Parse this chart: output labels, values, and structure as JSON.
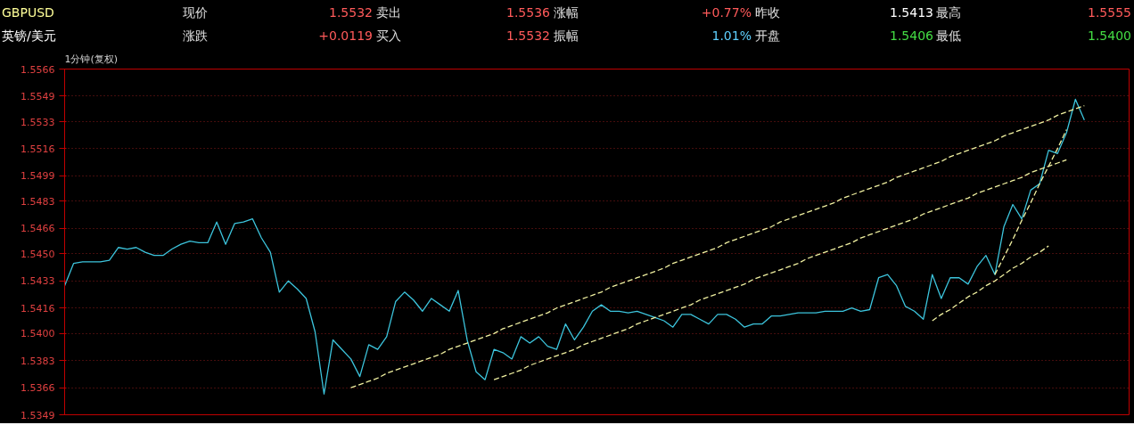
{
  "chart_data": {
    "type": "line",
    "title": "GBPUSD",
    "subtitle": "英镑/美元",
    "annotations": [
      "1分钟(复权)",
      "现价",
      "1.5532",
      "卖出",
      "1.5536",
      "涨幅",
      "+0.77%",
      "昨收",
      "1.5413",
      "最高",
      "1.5555",
      "涨跌",
      "+0.0119",
      "买入",
      "1.5532",
      "振幅",
      "1.01%",
      "开盘",
      "1.5406",
      "最低",
      "1.5400"
    ],
    "categories": [
      null,
      null,
      null,
      null,
      null,
      null,
      null,
      null,
      null,
      null,
      null,
      null,
      null,
      null,
      null,
      null,
      null,
      null,
      null,
      null,
      null,
      null,
      null,
      null,
      null,
      null,
      null,
      null,
      null,
      null,
      null,
      null,
      null,
      null,
      null,
      null,
      null,
      null,
      null,
      null,
      null,
      null,
      null,
      null,
      null,
      null,
      null,
      null,
      null,
      null,
      null,
      null,
      null,
      null,
      null,
      null,
      null,
      null,
      null,
      null,
      null,
      null,
      null,
      null,
      null,
      null,
      null,
      null,
      null,
      null,
      null,
      null,
      null,
      null,
      null,
      null,
      null,
      null,
      null,
      null,
      null,
      null,
      null,
      null,
      null,
      null,
      null,
      null,
      null,
      null,
      null,
      null,
      null,
      null,
      null,
      null,
      null,
      null,
      null,
      null,
      null,
      null,
      null,
      null,
      null,
      null,
      null,
      null,
      null,
      null,
      null,
      null,
      null,
      null,
      null,
      null,
      null,
      null,
      null,
      null
    ],
    "series": [
      {
        "color": "#3cc4dc",
        "values": [
          1.543,
          1.5444,
          1.5445,
          1.5445,
          1.5445,
          1.5446,
          1.5454,
          1.5453,
          1.5454,
          1.5451,
          1.5449,
          1.5449,
          1.5453,
          1.5456,
          1.5458,
          1.5457,
          1.5457,
          1.547,
          1.5456,
          1.5469,
          1.547,
          1.5472,
          1.546,
          1.5451,
          1.5426,
          1.5433,
          1.5428,
          1.5422,
          1.5401,
          1.5362,
          1.5396,
          1.539,
          1.5384,
          1.5373,
          1.5393,
          1.539,
          1.5398,
          1.542,
          1.5426,
          1.5421,
          1.5414,
          1.5422,
          1.5418,
          1.5414,
          1.5427,
          1.5396,
          1.5376,
          1.5371,
          1.539,
          1.5388,
          1.5384,
          1.5398,
          1.5394,
          1.5398,
          1.5392,
          1.539,
          1.5406,
          1.5396,
          1.5404,
          1.5414,
          1.5418,
          1.5414,
          1.5414,
          1.5413,
          1.5414,
          1.5412,
          1.541,
          1.5408,
          1.5404,
          1.5412,
          1.5412,
          1.5409,
          1.5406,
          1.5412,
          1.5412,
          1.5409,
          1.5404,
          1.5406,
          1.5406,
          1.5411,
          1.5411,
          1.5412,
          1.5413,
          1.5413,
          1.5413,
          1.5414,
          1.5414,
          1.5414,
          1.5416,
          1.5414,
          1.5415,
          1.5435,
          1.5437,
          1.543,
          1.5417,
          1.5414,
          1.5409,
          1.5437,
          1.5422,
          1.5435,
          1.5435,
          1.5431,
          1.5442,
          1.5449,
          1.5437,
          1.5467,
          1.5481,
          1.5472,
          1.549,
          1.5494,
          1.5515,
          1.5513,
          1.5526,
          1.5547,
          1.5534,
          null,
          null,
          null,
          null,
          null
        ]
      },
      {
        "type": "line",
        "color": "#f0f0a0",
        "line_style": "dashed",
        "values": [
          null,
          null,
          null,
          null,
          null,
          null,
          null,
          null,
          null,
          null,
          null,
          null,
          null,
          null,
          null,
          null,
          null,
          null,
          null,
          null,
          null,
          null,
          null,
          null,
          null,
          null,
          null,
          null,
          null,
          null,
          null,
          null,
          1.5366,
          1.5368,
          1.537,
          1.5372,
          1.5375,
          1.5377,
          1.5379,
          1.5381,
          1.5383,
          1.5385,
          1.5387,
          1.539,
          1.5392,
          1.5394,
          1.5396,
          1.5398,
          1.54,
          1.5403,
          1.5405,
          1.5407,
          1.5409,
          1.5411,
          1.5413,
          1.5416,
          1.5418,
          1.542,
          1.5422,
          1.5424,
          1.5426,
          1.5429,
          1.5431,
          1.5433,
          1.5435,
          1.5437,
          1.5439,
          1.5441,
          1.5444,
          1.5446,
          1.5448,
          1.545,
          1.5452,
          1.5454,
          1.5457,
          1.5459,
          1.5461,
          1.5463,
          1.5465,
          1.5467,
          1.547,
          1.5472,
          1.5474,
          1.5476,
          1.5478,
          1.548,
          1.5482,
          1.5485,
          1.5487,
          1.5489,
          1.5491,
          1.5493,
          1.5495,
          1.5498,
          1.55,
          1.5502,
          1.5504,
          1.5506,
          1.5508,
          1.5511,
          1.5513,
          1.5515,
          1.5517,
          1.5519,
          1.5521,
          1.5524,
          1.5526,
          1.5528,
          1.553,
          1.5532,
          1.5534,
          1.5537,
          1.5539,
          1.5541,
          1.5543,
          null,
          null,
          null,
          null,
          null
        ]
      },
      {
        "type": "line",
        "color": "#f0f0a0",
        "line_style": "dashed",
        "values": [
          null,
          null,
          null,
          null,
          null,
          null,
          null,
          null,
          null,
          null,
          null,
          null,
          null,
          null,
          null,
          null,
          null,
          null,
          null,
          null,
          null,
          null,
          null,
          null,
          null,
          null,
          null,
          null,
          null,
          null,
          null,
          null,
          null,
          null,
          null,
          null,
          null,
          null,
          null,
          null,
          null,
          null,
          null,
          null,
          null,
          null,
          null,
          null,
          1.5371,
          1.5373,
          1.5375,
          1.5377,
          1.538,
          1.5382,
          1.5384,
          1.5386,
          1.5388,
          1.539,
          1.5393,
          1.5395,
          1.5397,
          1.5399,
          1.5401,
          1.5403,
          1.5406,
          1.5408,
          1.541,
          1.5412,
          1.5414,
          1.5416,
          1.5418,
          1.5421,
          1.5423,
          1.5425,
          1.5427,
          1.5429,
          1.5431,
          1.5434,
          1.5436,
          1.5438,
          1.544,
          1.5442,
          1.5444,
          1.5447,
          1.5449,
          1.5451,
          1.5453,
          1.5455,
          1.5457,
          1.546,
          1.5462,
          1.5464,
          1.5466,
          1.5468,
          1.547,
          1.5472,
          1.5475,
          1.5477,
          1.5479,
          1.5481,
          1.5483,
          1.5485,
          1.5488,
          1.549,
          1.5492,
          1.5494,
          1.5496,
          1.5498,
          1.5501,
          1.5503,
          1.5505,
          1.5507,
          1.5509,
          null,
          null,
          null,
          null,
          null,
          null,
          null
        ]
      },
      {
        "type": "line",
        "color": "#f0f0a0",
        "line_style": "dashed",
        "values": [
          null,
          null,
          null,
          null,
          null,
          null,
          null,
          null,
          null,
          null,
          null,
          null,
          null,
          null,
          null,
          null,
          null,
          null,
          null,
          null,
          null,
          null,
          null,
          null,
          null,
          null,
          null,
          null,
          null,
          null,
          null,
          null,
          null,
          null,
          null,
          null,
          null,
          null,
          null,
          null,
          null,
          null,
          null,
          null,
          null,
          null,
          null,
          null,
          null,
          null,
          null,
          null,
          null,
          null,
          null,
          null,
          null,
          null,
          null,
          null,
          null,
          null,
          null,
          null,
          null,
          null,
          null,
          null,
          null,
          null,
          null,
          null,
          null,
          null,
          null,
          null,
          null,
          null,
          null,
          null,
          null,
          null,
          null,
          null,
          null,
          null,
          null,
          null,
          null,
          null,
          null,
          null,
          null,
          null,
          null,
          null,
          null,
          1.5408,
          1.5412,
          1.5415,
          1.5419,
          1.5423,
          1.5426,
          1.543,
          1.5433,
          1.5437,
          1.5441,
          1.5444,
          1.5448,
          1.5451,
          1.5455,
          null,
          null,
          null,
          null,
          null,
          null,
          null,
          null,
          null
        ]
      },
      {
        "type": "line",
        "color": "#f0f0a0",
        "line_style": "dashed",
        "values": [
          null,
          null,
          null,
          null,
          null,
          null,
          null,
          null,
          null,
          null,
          null,
          null,
          null,
          null,
          null,
          null,
          null,
          null,
          null,
          null,
          null,
          null,
          null,
          null,
          null,
          null,
          null,
          null,
          null,
          null,
          null,
          null,
          null,
          null,
          null,
          null,
          null,
          null,
          null,
          null,
          null,
          null,
          null,
          null,
          null,
          null,
          null,
          null,
          null,
          null,
          null,
          null,
          null,
          null,
          null,
          null,
          null,
          null,
          null,
          null,
          null,
          null,
          null,
          null,
          null,
          null,
          null,
          null,
          null,
          null,
          null,
          null,
          null,
          null,
          null,
          null,
          null,
          null,
          null,
          null,
          null,
          null,
          null,
          null,
          null,
          null,
          null,
          null,
          null,
          null,
          null,
          null,
          null,
          null,
          null,
          null,
          null,
          null,
          null,
          null,
          null,
          null,
          null,
          null,
          1.5437,
          1.5448,
          1.5459,
          1.5471,
          1.5482,
          1.5494,
          1.5505,
          1.5516,
          1.5528,
          null,
          null,
          null,
          null,
          null,
          null,
          null
        ]
      }
    ],
    "ylim": [
      1.5349,
      1.5566
    ],
    "yticks": [
      1.5349,
      1.5366,
      1.5383,
      {
        "value": 1.54,
        "label": "1.5400"
      },
      1.5416,
      1.5433,
      {
        "value": 1.545,
        "label": "1.5450"
      },
      1.5466,
      1.5483,
      1.5499,
      1.5516,
      1.5533,
      1.5549,
      1.5566
    ],
    "grid": "y",
    "tick_labels": "y"
  }
}
